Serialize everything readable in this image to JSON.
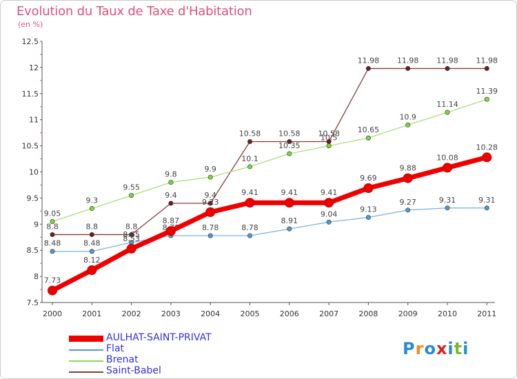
{
  "header": {
    "title": "Evolution du Taux de Taxe d'Habitation",
    "subtitle": "(en %)"
  },
  "chart_data": {
    "type": "line",
    "x": [
      "2000",
      "2001",
      "2002",
      "2003",
      "2004",
      "2005",
      "2006",
      "2007",
      "2008",
      "2009",
      "2010",
      "2011"
    ],
    "ylim": [
      7.5,
      12.5
    ],
    "yticks": [
      "7.5",
      "8",
      "8.5",
      "9",
      "9.5",
      "10",
      "10.5",
      "11",
      "11.5",
      "12",
      "12.5"
    ],
    "grid": false,
    "legend_position": "bottom-left",
    "series": [
      {
        "name": "Saint-Babel",
        "color": "#6b1f1f",
        "line_color": "#8a3a3a",
        "values": [
          8.8,
          8.8,
          8.8,
          9.4,
          9.4,
          10.58,
          10.58,
          10.58,
          11.98,
          11.98,
          11.98,
          11.98
        ],
        "labels": [
          "8.8",
          "8.8",
          "8.8",
          "9.4",
          "9.4",
          "10.58",
          "10.58",
          "10.58",
          "11.98",
          "11.98",
          "11.98",
          "11.98"
        ]
      },
      {
        "name": "Brenat",
        "color": "#7dd63a",
        "line_color": "#a6e07a",
        "values": [
          9.05,
          9.3,
          9.55,
          9.8,
          9.9,
          10.1,
          10.35,
          10.5,
          10.65,
          10.9,
          11.14,
          11.39
        ],
        "labels": [
          "9.05",
          "9.3",
          "9.55",
          "9.8",
          "9.9",
          "10.1",
          "10.35",
          "10.5",
          "10.65",
          "10.9",
          "11.14",
          "11.39"
        ]
      },
      {
        "name": "Flat",
        "color": "#4f9ad6",
        "line_color": "#7fb3dc",
        "values": [
          8.48,
          8.48,
          8.65,
          8.78,
          8.78,
          8.78,
          8.91,
          9.04,
          9.13,
          9.27,
          9.31,
          9.31
        ],
        "labels": [
          "8.48",
          "8.48",
          "8.65",
          "8.78",
          "8.78",
          "8.78",
          "8.91",
          "9.04",
          "9.13",
          "9.27",
          "9.31",
          "9.31"
        ]
      },
      {
        "name": "AULHAT-SAINT-PRIVAT",
        "color": "#ee0000",
        "line_color": "#ee0000",
        "values": [
          7.73,
          8.12,
          8.53,
          8.87,
          9.23,
          9.41,
          9.41,
          9.41,
          9.69,
          9.88,
          10.08,
          10.28
        ],
        "labels": [
          "7.73",
          "8.12",
          "8.53",
          "8.87",
          "9.23",
          "9.41",
          "9.41",
          "9.41",
          "9.69",
          "9.88",
          "10.08",
          "10.28"
        ]
      }
    ]
  },
  "legend": {
    "items": [
      {
        "label": "AULHAT-SAINT-PRIVAT",
        "color": "#ee0000"
      },
      {
        "label": "Flat",
        "color": "#4f9ad6"
      },
      {
        "label": "Brenat",
        "color": "#8ed65a"
      },
      {
        "label": "Saint-Babel",
        "color": "#8a3a3a"
      }
    ]
  },
  "logo": {
    "letters": [
      "P",
      "r",
      "o",
      "x",
      "i",
      "t",
      "i"
    ],
    "colors": [
      "#2a8ad8",
      "#f08a1a",
      "#2a8ad8",
      "#e02020",
      "#2a8ad8",
      "#7ab830",
      "#2a8ad8"
    ]
  }
}
